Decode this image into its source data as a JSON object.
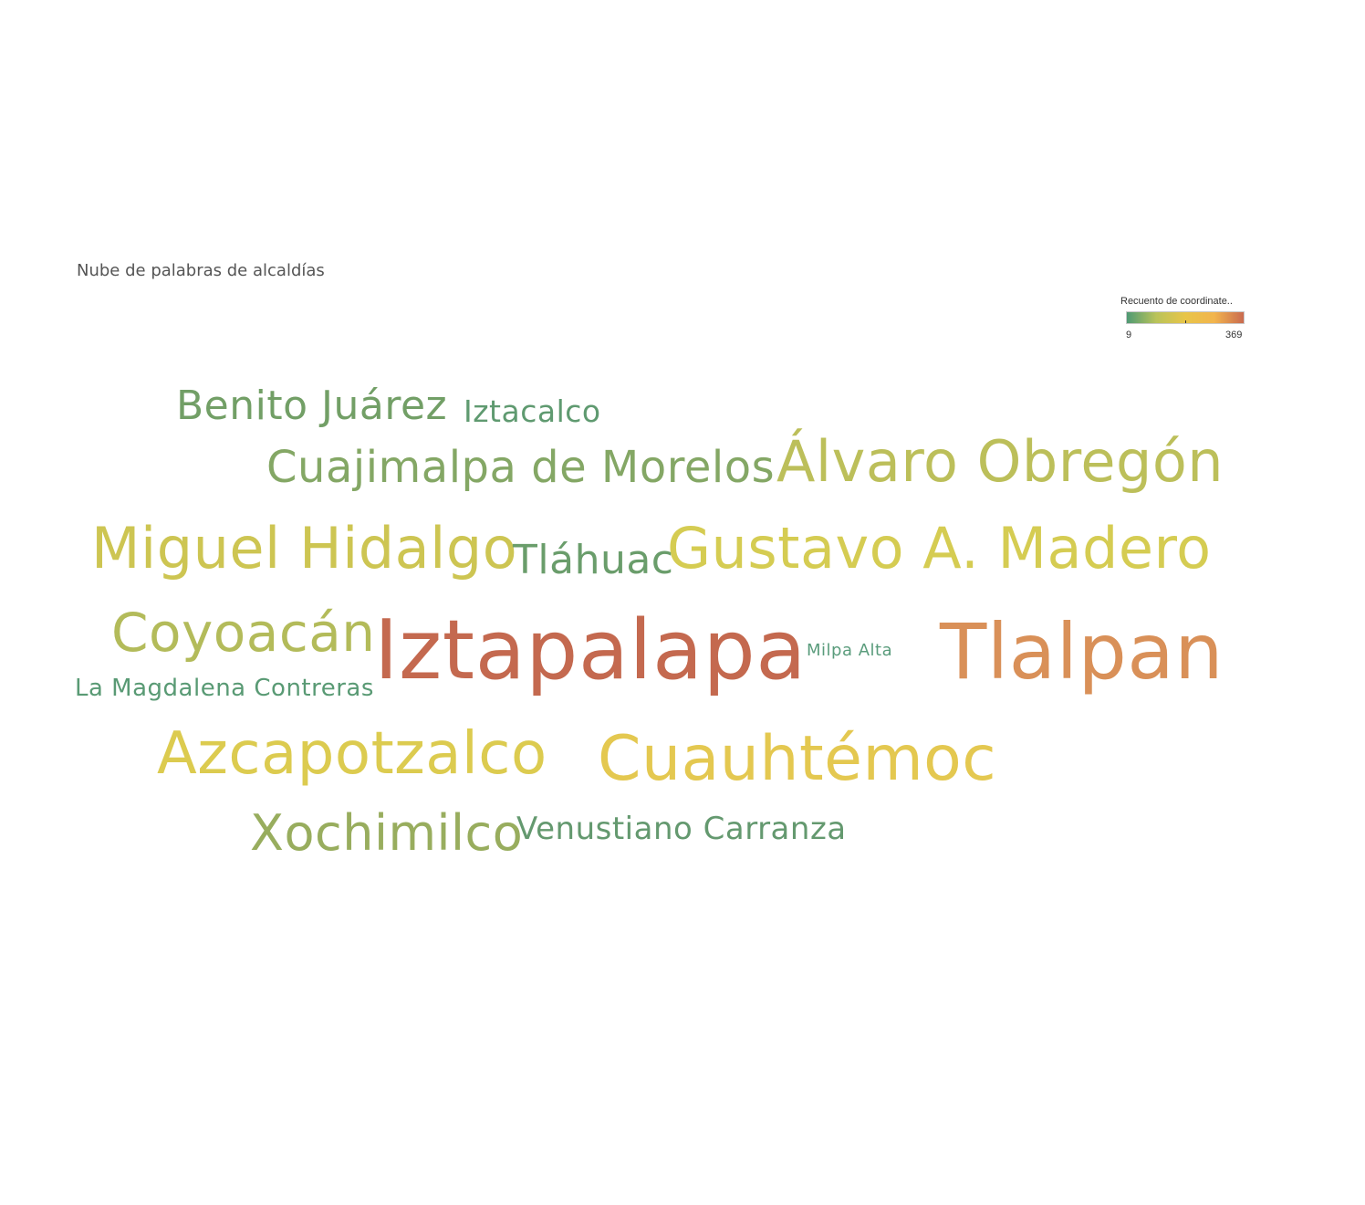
{
  "title": "Nube de palabras de alcaldías",
  "legend": {
    "title": "Recuento de coordinate..",
    "min_label": "9",
    "max_label": "369",
    "colors": [
      "#4e9a74",
      "#b9c35a",
      "#e8c548",
      "#f2b44d",
      "#c96a4f"
    ]
  },
  "chart_data": {
    "type": "wordcloud",
    "title": "Nube de palabras de alcaldías",
    "color_legend": "Recuento de coordinate..",
    "value_range": [
      9,
      369
    ],
    "words": [
      {
        "text": "Iztapalapa",
        "value": 369,
        "color": "#c4694f"
      },
      {
        "text": "Tlalpan",
        "value": 320,
        "color": "#d99058"
      },
      {
        "text": "Cuauhtémoc",
        "value": 230,
        "color": "#e4c850"
      },
      {
        "text": "Gustavo A. Madero",
        "value": 200,
        "color": "#d5cc52"
      },
      {
        "text": "Azcapotzalco",
        "value": 210,
        "color": "#dccb4f"
      },
      {
        "text": "Miguel Hidalgo",
        "value": 185,
        "color": "#cdc552"
      },
      {
        "text": "Álvaro Obregón",
        "value": 150,
        "color": "#bcbf5a"
      },
      {
        "text": "Coyoacán",
        "value": 130,
        "color": "#b3bb5a"
      },
      {
        "text": "Xochimilco",
        "value": 90,
        "color": "#98ad5e"
      },
      {
        "text": "Cuajimalpa de Morelos",
        "value": 75,
        "color": "#84a765"
      },
      {
        "text": "Benito Juárez",
        "value": 60,
        "color": "#729f66"
      },
      {
        "text": "Tláhuac",
        "value": 45,
        "color": "#6a9d6b"
      },
      {
        "text": "Venustiano Carranza",
        "value": 32,
        "color": "#64996f"
      },
      {
        "text": "Iztacalco",
        "value": 25,
        "color": "#5f9a70"
      },
      {
        "text": "La Magdalena Contreras",
        "value": 18,
        "color": "#599a74"
      },
      {
        "text": "Milpa Alta",
        "value": 9,
        "color": "#5a9c7c"
      }
    ]
  }
}
